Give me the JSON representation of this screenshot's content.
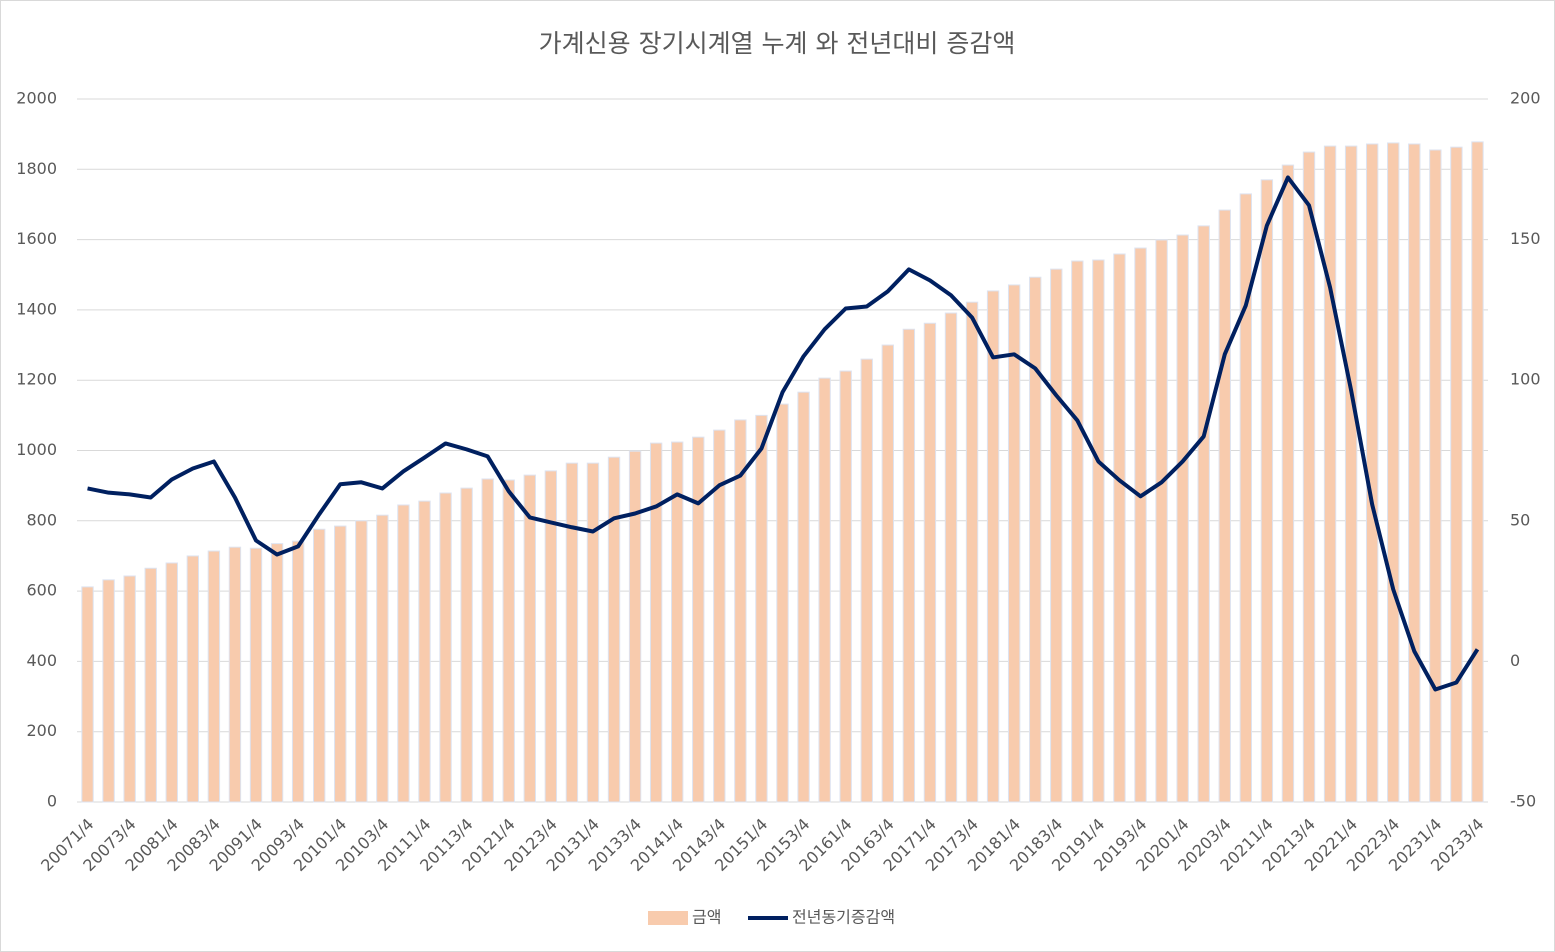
{
  "chart_data": {
    "type": "bar+line",
    "title": "가계신용 장기시계열 누계 와 전년대비 증감액",
    "categories": [
      "20071/4",
      null,
      "20073/4",
      null,
      "20081/4",
      null,
      "20083/4",
      null,
      "20091/4",
      null,
      "20093/4",
      null,
      "20101/4",
      null,
      "20103/4",
      null,
      "20111/4",
      null,
      "20113/4",
      null,
      "20121/4",
      null,
      "20123/4",
      null,
      "20131/4",
      null,
      "20133/4",
      null,
      "20141/4",
      null,
      "20143/4",
      null,
      "20151/4",
      null,
      "20153/4",
      null,
      "20161/4",
      null,
      "20163/4",
      null,
      "20171/4",
      null,
      "20173/4",
      null,
      "20181/4",
      null,
      "20183/4",
      null,
      "20191/4",
      null,
      "20193/4",
      null,
      "20201/4",
      null,
      "20203/4",
      null,
      "20211/4",
      null,
      "20213/4",
      null,
      "20221/4",
      null,
      "20223/4",
      null,
      "20231/4",
      null,
      "20233/4"
    ],
    "series": [
      {
        "name": "금액",
        "type": "bar",
        "color": "#f8cbad",
        "values": [
          612,
          632,
          643,
          665,
          680,
          700,
          714,
          725,
          722,
          735,
          742,
          776,
          785,
          800,
          816,
          845,
          856,
          879,
          893,
          919,
          916,
          930,
          942,
          964,
          964,
          981,
          998,
          1021,
          1024,
          1038,
          1058,
          1087,
          1100,
          1132,
          1166,
          1206,
          1226,
          1260,
          1300,
          1345,
          1362,
          1391,
          1422,
          1454,
          1471,
          1493,
          1516,
          1539,
          1542,
          1559,
          1576,
          1599,
          1613,
          1639,
          1684,
          1730,
          1770,
          1812,
          1849,
          1866,
          1866,
          1872,
          1875,
          1872,
          1855,
          1863,
          1878
        ]
      },
      {
        "name": "전년동기증감액",
        "type": "line",
        "axis": "y2",
        "color": "#002060",
        "values": [
          61.5,
          60,
          59.4,
          58.3,
          64.7,
          68.6,
          71.1,
          58.3,
          43,
          38,
          40.9,
          52.3,
          63,
          63.7,
          61.5,
          67.6,
          72.5,
          77.5,
          75.4,
          72.9,
          60.5,
          51.2,
          49.4,
          47.7,
          46.2,
          50.9,
          52.6,
          55.1,
          59.4,
          56.2,
          62.6,
          66.1,
          75.7,
          95.7,
          108.5,
          118.1,
          125.5,
          126.2,
          131.6,
          139.4,
          135.5,
          130.2,
          122.3,
          108.1,
          109.2,
          104.2,
          94.6,
          85.7,
          71.1,
          64.4,
          58.7,
          63.7,
          71.1,
          80,
          109.2,
          126.6,
          155,
          172.1,
          162.2,
          133,
          96.4,
          55.8,
          25.6,
          3.6,
          -10,
          -7.5,
          4.3
        ]
      }
    ],
    "ylim": [
      0,
      2000
    ],
    "yticks": [
      0,
      200,
      400,
      600,
      800,
      1000,
      1200,
      1400,
      1600,
      1800,
      2000
    ],
    "y2lim": [
      -50,
      200
    ],
    "y2ticks": [
      -50,
      0,
      50,
      100,
      150,
      200
    ],
    "grid": true,
    "legend": "bottom"
  }
}
